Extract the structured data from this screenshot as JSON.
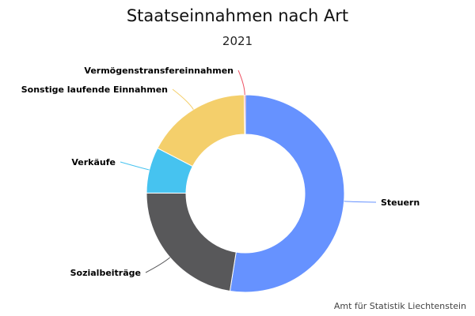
{
  "chart_data": {
    "type": "pie",
    "variant": "donut",
    "title": "Staatseinnahmen nach Art",
    "subtitle": "2021",
    "credits": "Amt für Statistik Liechtenstein",
    "slices": [
      {
        "name": "Steuern",
        "value": 52.5,
        "color": "#6692ff"
      },
      {
        "name": "Sozialbeiträge",
        "value": 22.6,
        "color": "#58585a"
      },
      {
        "name": "Verkäufe",
        "value": 7.5,
        "color": "#46c3f0"
      },
      {
        "name": "Sonstige laufende Einnahmen",
        "value": 17.2,
        "color": "#f4cf6b"
      },
      {
        "name": "Vermögenstransfereinnahmen",
        "value": 0.2,
        "color": "#ee5566"
      }
    ]
  }
}
